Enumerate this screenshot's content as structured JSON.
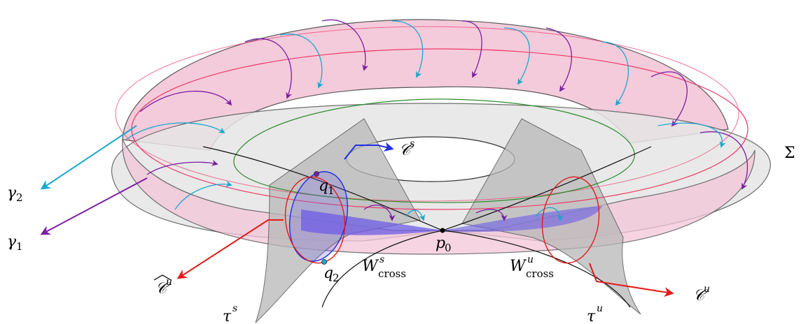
{
  "labels": {
    "Sigma": "Σ",
    "C_s": "𝒞",
    "C_s_sup": "s",
    "C_u": "𝒞",
    "C_u_sup": "u",
    "C_u_hat": "𝒞",
    "C_u_hat_sup": "u",
    "gamma1": "γ",
    "gamma1_sub": "1",
    "gamma2": "γ",
    "gamma2_sub": "2",
    "q1": "q",
    "q1_sub": "1",
    "q2": "q",
    "q2_sub": "2",
    "p0": "p",
    "p0_sub": "0",
    "W_s_cross": "W",
    "W_s_cross_sup": "s",
    "W_s_cross_sub": "cross",
    "W_u_cross": "W",
    "W_u_cross_sup": "u",
    "W_u_cross_sub": "cross",
    "tau_s": "τ",
    "tau_s_sup": "s",
    "tau_u": "τ",
    "tau_u_sup": "u"
  },
  "colors": {
    "torus_fill": "#f3c6d8",
    "torus_line": "#ef3a6a",
    "plane_fill": "#e6e6e6",
    "sheet_fill": "#b8b8b8",
    "purple": "#7b1fa2",
    "cyan": "#18a8cf",
    "blue": "#1f2ee8",
    "red": "#e31a1a",
    "green": "#2e8b2e",
    "wedge": "#6d5ce6"
  }
}
